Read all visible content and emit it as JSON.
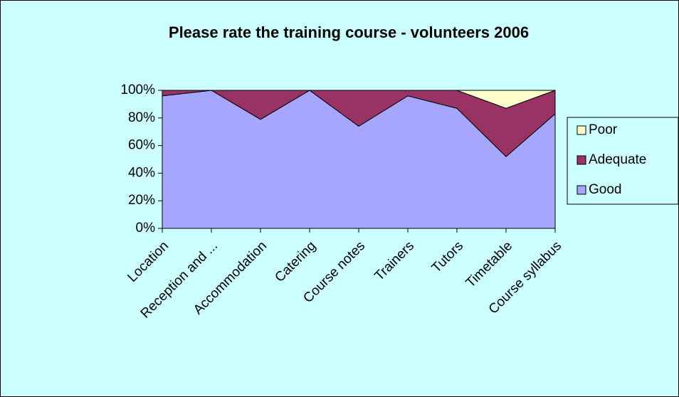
{
  "chart_data": {
    "type": "area",
    "stacked": true,
    "title": "Please rate the training course - volunteers 2006",
    "categories": [
      "Location",
      "Reception and ...",
      "Accommodation",
      "Catering",
      "Course notes",
      "Trainers",
      "Tutors",
      "Timetable",
      "Course syllabus"
    ],
    "series": [
      {
        "name": "Good",
        "color": "#a6a6ff",
        "values": [
          96,
          100,
          79,
          100,
          74,
          96,
          87,
          52,
          83
        ]
      },
      {
        "name": "Adequate",
        "color": "#993366",
        "values": [
          4,
          0,
          21,
          0,
          26,
          4,
          13,
          35,
          17
        ]
      },
      {
        "name": "Poor",
        "color": "#ffffcc",
        "values": [
          0,
          0,
          0,
          0,
          0,
          0,
          0,
          13,
          0
        ]
      }
    ],
    "ylim": [
      0,
      100
    ],
    "yticks": [
      {
        "value": 0,
        "label": "0%"
      },
      {
        "value": 20,
        "label": "20%"
      },
      {
        "value": 40,
        "label": "40%"
      },
      {
        "value": 60,
        "label": "60%"
      },
      {
        "value": 80,
        "label": "80%"
      },
      {
        "value": 100,
        "label": "100%"
      }
    ],
    "legend": "right"
  }
}
